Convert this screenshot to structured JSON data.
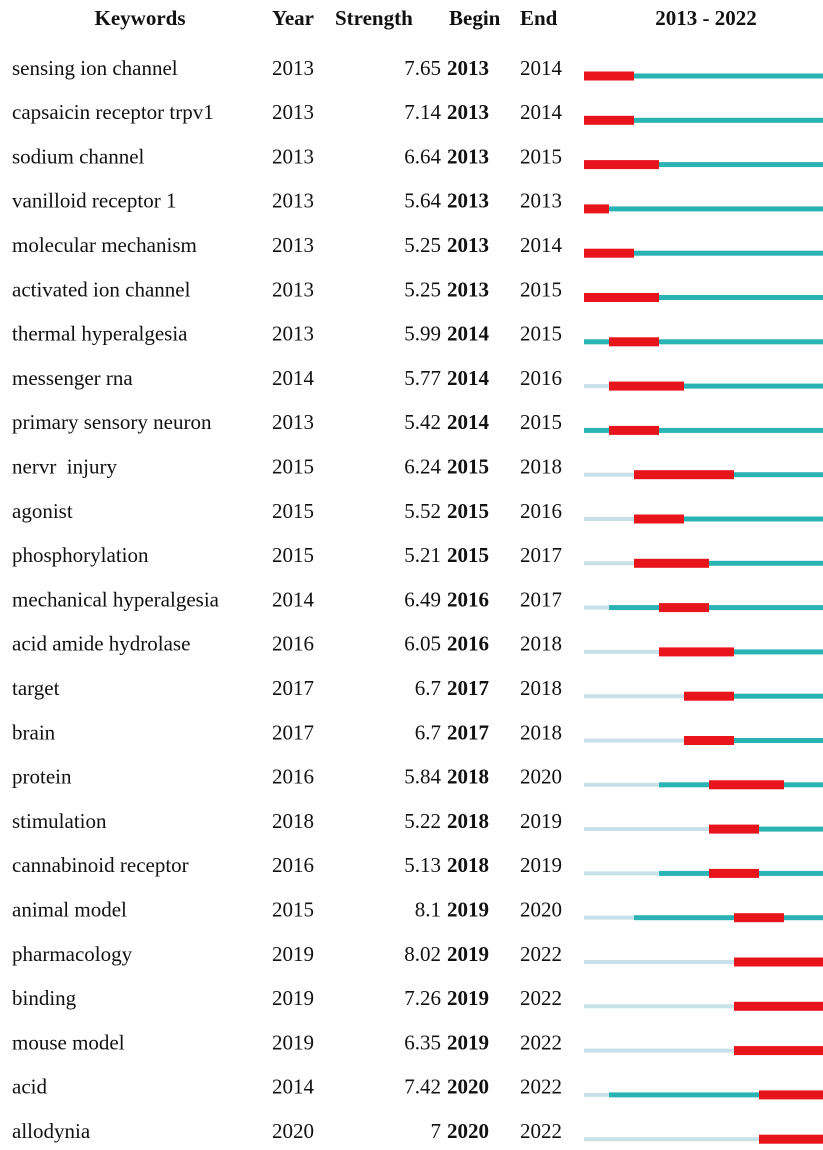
{
  "header": {
    "keyword": "Keywords",
    "year": "Year",
    "strength": "Strength",
    "begin": "Begin",
    "end": "End",
    "range_label": "2013 - 2022"
  },
  "timeline": {
    "start": 2013,
    "end": 2022
  },
  "rows": [
    {
      "keyword": "sensing ion channel",
      "year": 2013,
      "strength": 7.65,
      "begin": 2013,
      "end": 2014
    },
    {
      "keyword": "capsaicin receptor trpv1",
      "year": 2013,
      "strength": 7.14,
      "begin": 2013,
      "end": 2014
    },
    {
      "keyword": "sodium channel",
      "year": 2013,
      "strength": 6.64,
      "begin": 2013,
      "end": 2015
    },
    {
      "keyword": "vanilloid receptor 1",
      "year": 2013,
      "strength": 5.64,
      "begin": 2013,
      "end": 2013
    },
    {
      "keyword": "molecular mechanism",
      "year": 2013,
      "strength": 5.25,
      "begin": 2013,
      "end": 2014
    },
    {
      "keyword": "activated ion channel",
      "year": 2013,
      "strength": 5.25,
      "begin": 2013,
      "end": 2015
    },
    {
      "keyword": "thermal hyperalgesia",
      "year": 2013,
      "strength": 5.99,
      "begin": 2014,
      "end": 2015
    },
    {
      "keyword": "messenger rna",
      "year": 2014,
      "strength": 5.77,
      "begin": 2014,
      "end": 2016
    },
    {
      "keyword": "primary sensory neuron",
      "year": 2013,
      "strength": 5.42,
      "begin": 2014,
      "end": 2015
    },
    {
      "keyword": "nervr  injury",
      "year": 2015,
      "strength": 6.24,
      "begin": 2015,
      "end": 2018
    },
    {
      "keyword": "agonist",
      "year": 2015,
      "strength": 5.52,
      "begin": 2015,
      "end": 2016
    },
    {
      "keyword": "phosphorylation",
      "year": 2015,
      "strength": 5.21,
      "begin": 2015,
      "end": 2017
    },
    {
      "keyword": "mechanical hyperalgesia",
      "year": 2014,
      "strength": 6.49,
      "begin": 2016,
      "end": 2017
    },
    {
      "keyword": "acid amide hydrolase",
      "year": 2016,
      "strength": 6.05,
      "begin": 2016,
      "end": 2018
    },
    {
      "keyword": "target",
      "year": 2017,
      "strength": 6.7,
      "begin": 2017,
      "end": 2018
    },
    {
      "keyword": "brain",
      "year": 2017,
      "strength": 6.7,
      "begin": 2017,
      "end": 2018
    },
    {
      "keyword": "protein",
      "year": 2016,
      "strength": 5.84,
      "begin": 2018,
      "end": 2020
    },
    {
      "keyword": "stimulation",
      "year": 2018,
      "strength": 5.22,
      "begin": 2018,
      "end": 2019
    },
    {
      "keyword": "cannabinoid receptor",
      "year": 2016,
      "strength": 5.13,
      "begin": 2018,
      "end": 2019
    },
    {
      "keyword": "animal model",
      "year": 2015,
      "strength": 8.1,
      "begin": 2019,
      "end": 2020
    },
    {
      "keyword": "pharmacology",
      "year": 2019,
      "strength": 8.02,
      "begin": 2019,
      "end": 2022
    },
    {
      "keyword": "binding",
      "year": 2019,
      "strength": 7.26,
      "begin": 2019,
      "end": 2022
    },
    {
      "keyword": "mouse model",
      "year": 2019,
      "strength": 6.35,
      "begin": 2019,
      "end": 2022
    },
    {
      "keyword": "acid",
      "year": 2014,
      "strength": 7.42,
      "begin": 2020,
      "end": 2022
    },
    {
      "keyword": "allodynia",
      "year": 2020,
      "strength": 7,
      "begin": 2020,
      "end": 2022
    }
  ]
}
